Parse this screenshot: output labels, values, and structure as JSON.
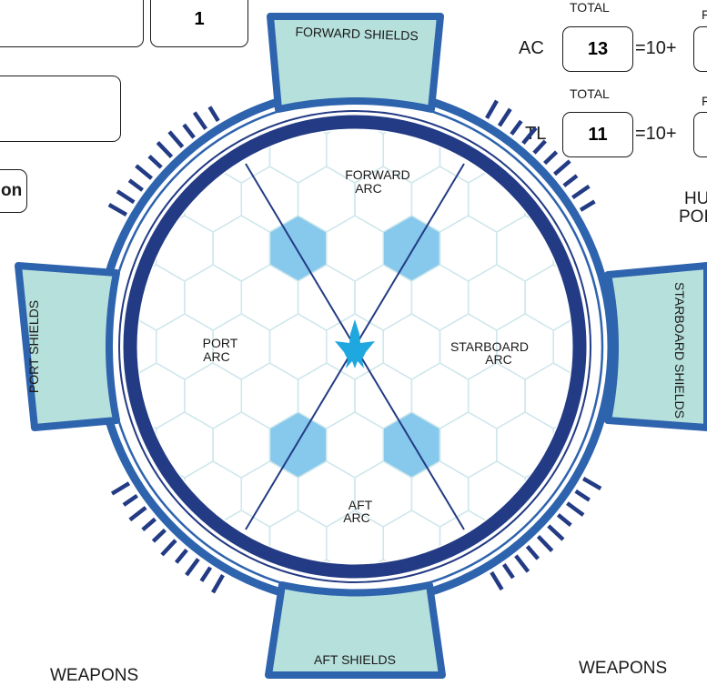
{
  "top_boxes": {
    "value_box": "1",
    "partial_label": "on"
  },
  "shields": {
    "forward": "FORWARD SHIELDS",
    "port": "PORT SHIELDS",
    "starboard": "STARBOARD SHIELDS",
    "aft": "AFT SHIELDS"
  },
  "arcs": {
    "forward": [
      "FORWARD",
      "ARC"
    ],
    "port": [
      "PORT",
      "ARC"
    ],
    "starboard": [
      "STARBOARD",
      "ARC"
    ],
    "aft": [
      "AFT",
      "ARC"
    ]
  },
  "ac": {
    "label": "AC",
    "total_label": "TOTAL",
    "total": "13",
    "formula": "=10+",
    "partial": "F"
  },
  "tl": {
    "label": "TL",
    "total_label": "TOTAL",
    "total": "11",
    "formula": "=10+",
    "partial": "F"
  },
  "hull_points_partial": [
    "HU",
    "POI"
  ],
  "weapons_left": "WEAPONS",
  "weapons_right": "WEAPONS",
  "colors": {
    "navy": "#233b84",
    "mid_blue": "#2e63ad",
    "light_fill": "#b6e0dc",
    "hex_fill": "#86c9ec",
    "hex_line": "#cfe7ec",
    "ship": "#1fa7e0"
  }
}
